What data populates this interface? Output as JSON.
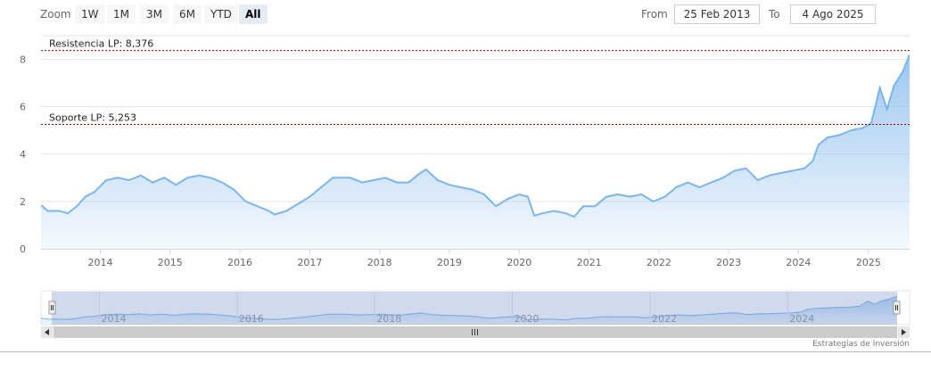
{
  "range_selector": {
    "zoom_label": "Zoom",
    "buttons": [
      "1W",
      "1M",
      "3M",
      "6M",
      "YTD",
      "All"
    ],
    "active": "All",
    "from_label": "From",
    "from_value": "25 Feb 2013",
    "to_label": "To",
    "to_value": "4 Ago 2025"
  },
  "credits": "Estrategias de Inversión",
  "colors": {
    "line": "#7cb5ec",
    "area": "#a9cdf3",
    "level_line": "#8b0000",
    "navigator_mask": "rgba(102,133,194,0.3)"
  },
  "chart_data": {
    "type": "area",
    "title": "",
    "xlabel": "",
    "ylabel": "",
    "xlim": [
      "2013-02-25",
      "2025-08-04"
    ],
    "ylim": [
      0,
      9
    ],
    "y_ticks": [
      0,
      2,
      4,
      6,
      8
    ],
    "x_ticks": [
      "2014",
      "2015",
      "2016",
      "2017",
      "2018",
      "2019",
      "2020",
      "2021",
      "2022",
      "2023",
      "2024",
      "2025"
    ],
    "grid": "horizontal",
    "series": [
      {
        "values": [
          [
            "2013-02-25",
            1.85
          ],
          [
            "2013-04-01",
            1.6
          ],
          [
            "2013-06-01",
            1.6
          ],
          [
            "2013-07-15",
            1.5
          ],
          [
            "2013-09-01",
            1.8
          ],
          [
            "2013-10-15",
            2.2
          ],
          [
            "2013-12-01",
            2.4
          ],
          [
            "2014-02-01",
            2.9
          ],
          [
            "2014-04-01",
            3.0
          ],
          [
            "2014-06-01",
            2.9
          ],
          [
            "2014-08-01",
            3.1
          ],
          [
            "2014-10-01",
            2.8
          ],
          [
            "2014-12-01",
            3.0
          ],
          [
            "2015-02-01",
            2.7
          ],
          [
            "2015-04-01",
            3.0
          ],
          [
            "2015-06-01",
            3.1
          ],
          [
            "2015-08-01",
            3.0
          ],
          [
            "2015-10-01",
            2.8
          ],
          [
            "2015-12-01",
            2.5
          ],
          [
            "2016-02-01",
            2.0
          ],
          [
            "2016-04-01",
            1.8
          ],
          [
            "2016-06-01",
            1.6
          ],
          [
            "2016-07-01",
            1.45
          ],
          [
            "2016-09-01",
            1.6
          ],
          [
            "2016-11-01",
            1.9
          ],
          [
            "2017-01-01",
            2.2
          ],
          [
            "2017-03-01",
            2.6
          ],
          [
            "2017-05-01",
            3.0
          ],
          [
            "2017-08-01",
            3.0
          ],
          [
            "2017-10-01",
            2.8
          ],
          [
            "2017-12-01",
            2.9
          ],
          [
            "2018-02-01",
            3.0
          ],
          [
            "2018-04-01",
            2.8
          ],
          [
            "2018-06-01",
            2.8
          ],
          [
            "2018-08-01",
            3.2
          ],
          [
            "2018-09-01",
            3.35
          ],
          [
            "2018-11-01",
            2.9
          ],
          [
            "2019-01-01",
            2.7
          ],
          [
            "2019-03-01",
            2.6
          ],
          [
            "2019-05-01",
            2.5
          ],
          [
            "2019-07-01",
            2.3
          ],
          [
            "2019-09-01",
            1.8
          ],
          [
            "2019-11-01",
            2.1
          ],
          [
            "2020-01-01",
            2.3
          ],
          [
            "2020-02-15",
            2.2
          ],
          [
            "2020-03-20",
            1.4
          ],
          [
            "2020-05-01",
            1.5
          ],
          [
            "2020-07-01",
            1.6
          ],
          [
            "2020-09-01",
            1.5
          ],
          [
            "2020-10-15",
            1.35
          ],
          [
            "2020-12-01",
            1.8
          ],
          [
            "2021-02-01",
            1.8
          ],
          [
            "2021-04-01",
            2.2
          ],
          [
            "2021-06-01",
            2.3
          ],
          [
            "2021-08-01",
            2.2
          ],
          [
            "2021-10-01",
            2.3
          ],
          [
            "2021-12-01",
            2.0
          ],
          [
            "2022-02-01",
            2.2
          ],
          [
            "2022-04-01",
            2.6
          ],
          [
            "2022-06-01",
            2.8
          ],
          [
            "2022-08-01",
            2.6
          ],
          [
            "2022-10-01",
            2.8
          ],
          [
            "2022-12-01",
            3.0
          ],
          [
            "2023-02-01",
            3.3
          ],
          [
            "2023-04-01",
            3.4
          ],
          [
            "2023-06-01",
            2.9
          ],
          [
            "2023-08-01",
            3.1
          ],
          [
            "2023-10-01",
            3.2
          ],
          [
            "2023-12-01",
            3.3
          ],
          [
            "2024-02-01",
            3.4
          ],
          [
            "2024-03-15",
            3.7
          ],
          [
            "2024-04-15",
            4.4
          ],
          [
            "2024-06-01",
            4.7
          ],
          [
            "2024-08-01",
            4.8
          ],
          [
            "2024-10-01",
            5.0
          ],
          [
            "2024-12-01",
            5.1
          ],
          [
            "2025-01-15",
            5.3
          ],
          [
            "2025-03-01",
            6.8
          ],
          [
            "2025-04-08",
            5.9
          ],
          [
            "2025-05-15",
            6.9
          ],
          [
            "2025-07-01",
            7.5
          ],
          [
            "2025-08-04",
            8.2
          ]
        ]
      }
    ],
    "annotations": [
      {
        "label": "Resistencia LP: 8,376",
        "value": 8.376
      },
      {
        "label": "Soporte LP: 5,253",
        "value": 5.253
      }
    ],
    "navigator": {
      "x_ticks": [
        "2014",
        "2016",
        "2018",
        "2020",
        "2022",
        "2024"
      ]
    }
  }
}
